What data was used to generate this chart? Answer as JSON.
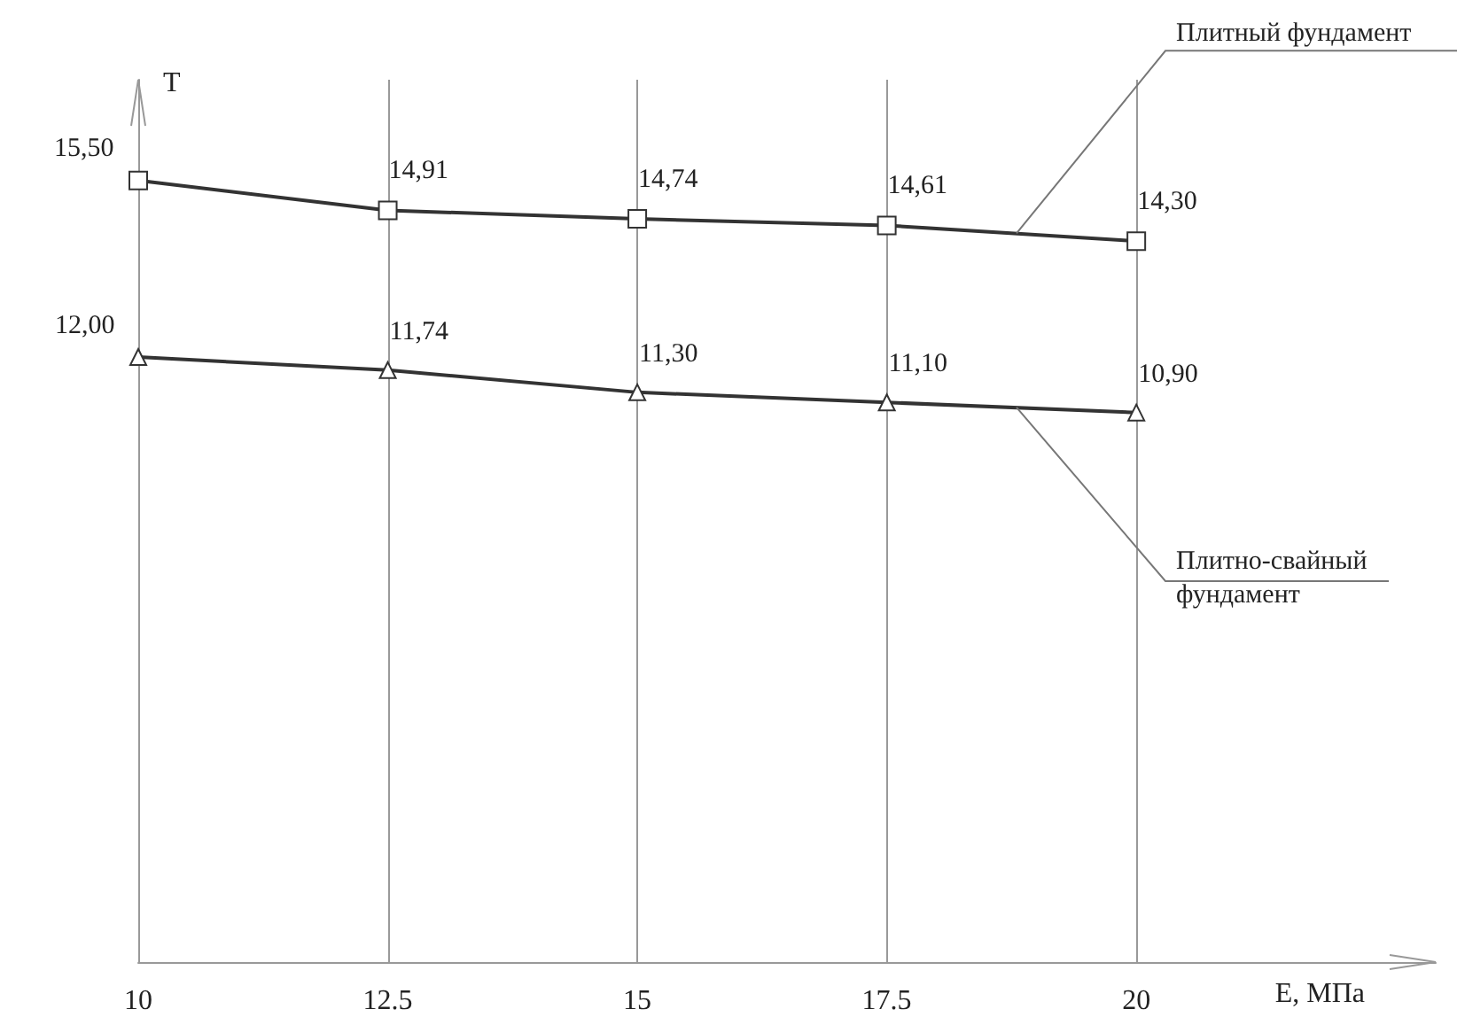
{
  "chart_data": {
    "type": "line",
    "xlabel": "E, МПа",
    "ylabel": "T",
    "x": [
      10,
      12.5,
      15,
      17.5,
      20
    ],
    "xlim": [
      10,
      23
    ],
    "xticks": [
      10,
      12.5,
      15,
      17.5,
      20
    ],
    "ylim": [
      0,
      17.5
    ],
    "tick_labels": "x",
    "grid": "x",
    "legend": false,
    "line_style": "solid",
    "series": [
      {
        "name": "Плитный фундамент",
        "color": "#333333",
        "marker": "square",
        "values": [
          15.5,
          14.91,
          14.74,
          14.61,
          14.3
        ],
        "value_labels": [
          "15,50",
          "14,91",
          "14,74",
          "14,61",
          "14,30"
        ]
      },
      {
        "name": "Плитно-свайный фундамент",
        "color": "#333333",
        "marker": "triangle",
        "values": [
          12.0,
          11.74,
          11.3,
          11.1,
          10.9
        ],
        "value_labels": [
          "12,00",
          "11,74",
          "11,30",
          "11,10",
          "10,90"
        ]
      }
    ]
  }
}
